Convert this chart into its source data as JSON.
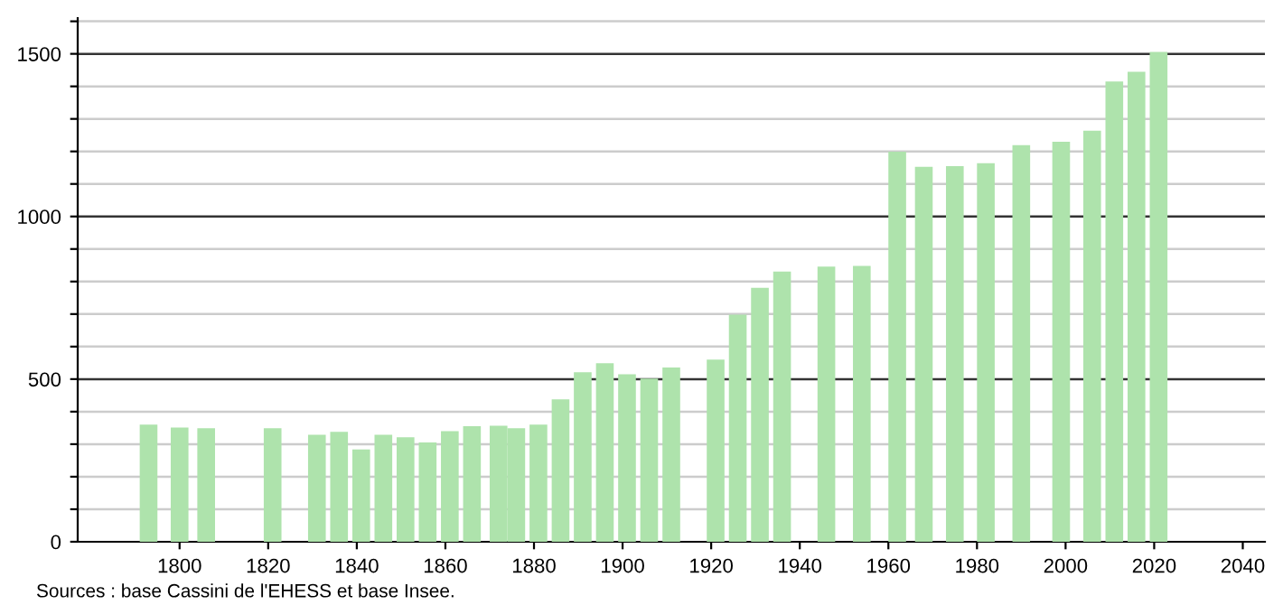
{
  "chart_data": {
    "type": "bar",
    "x": [
      1793,
      1800,
      1806,
      1821,
      1831,
      1836,
      1841,
      1846,
      1851,
      1856,
      1861,
      1866,
      1872,
      1876,
      1881,
      1886,
      1891,
      1896,
      1901,
      1906,
      1911,
      1921,
      1926,
      1931,
      1936,
      1946,
      1954,
      1962,
      1968,
      1975,
      1982,
      1990,
      1999,
      2006,
      2011,
      2016,
      2021
    ],
    "values": [
      360,
      351,
      349,
      349,
      329,
      338,
      284,
      329,
      321,
      305,
      340,
      355,
      357,
      349,
      360,
      438,
      521,
      549,
      515,
      502,
      536,
      560,
      698,
      781,
      831,
      846,
      848,
      1199,
      1153,
      1155,
      1164,
      1219,
      1230,
      1264,
      1415,
      1445,
      1506
    ],
    "color": "#aee3ac",
    "xlim": [
      1777,
      2045
    ],
    "xticks": [
      1800,
      1820,
      1840,
      1860,
      1880,
      1900,
      1920,
      1940,
      1960,
      1980,
      2000,
      2020,
      2040
    ],
    "ylim": [
      0,
      1610
    ],
    "yticks": [
      0,
      {
        "value": 100,
        "label": null
      },
      {
        "value": 200,
        "label": null
      },
      {
        "value": 300,
        "label": null
      },
      {
        "value": 400,
        "label": null
      },
      500,
      {
        "value": 600,
        "label": null
      },
      {
        "value": 700,
        "label": null
      },
      {
        "value": 800,
        "label": null
      },
      {
        "value": 900,
        "label": null
      },
      1000,
      {
        "value": 1100,
        "label": null
      },
      {
        "value": 1200,
        "label": null
      },
      {
        "value": 1300,
        "label": null
      },
      {
        "value": 1400,
        "label": null
      },
      1500,
      {
        "value": 1600,
        "label": null
      }
    ],
    "grid": "y",
    "annotations": [
      "Sources : base Cassini de l'EHESS et base Insee."
    ]
  }
}
